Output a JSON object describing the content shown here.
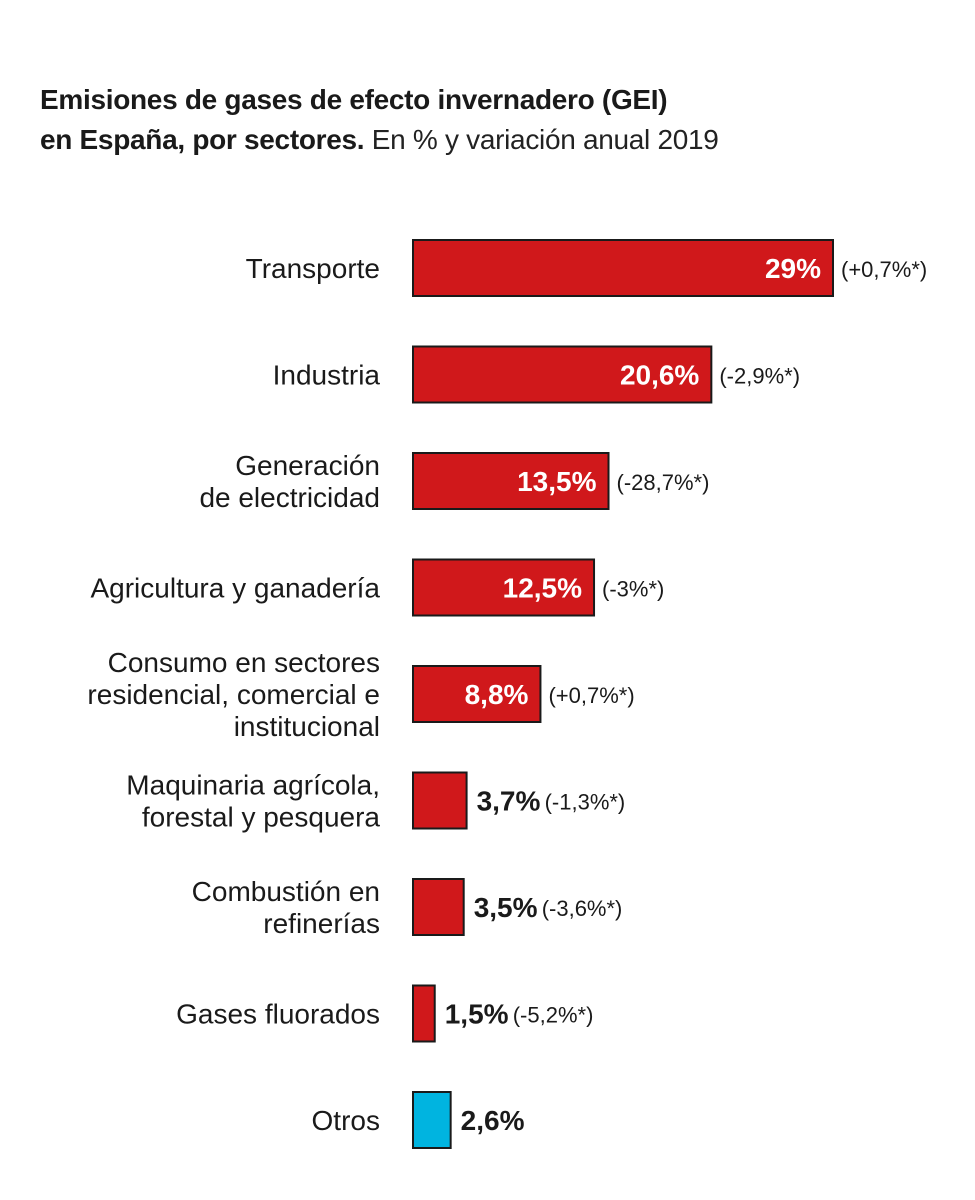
{
  "colors": {
    "bar": "#d0181b",
    "other": "#00b4e0",
    "stroke": "#1a1a1a"
  },
  "chart_data": {
    "type": "bar",
    "orientation": "horizontal",
    "title_line1": "Emisiones de gases de efecto invernadero (GEI)",
    "title_line2_bold": "en España, por sectores.",
    "title_line2_light": "En % y variación anual 2019",
    "categories": [
      [
        "Transporte"
      ],
      [
        "Industria"
      ],
      [
        "Generación",
        "de electricidad"
      ],
      [
        "Agricultura y ganadería"
      ],
      [
        "Consumo en sectores",
        "residencial, comercial e",
        "institucional"
      ],
      [
        "Maquinaria agrícola,",
        "forestal y pesquera"
      ],
      [
        "Combustión en",
        "refinerías"
      ],
      [
        "Gases fluorados"
      ],
      [
        "Otros"
      ]
    ],
    "values": [
      29,
      20.6,
      13.5,
      12.5,
      8.8,
      3.7,
      3.5,
      1.5,
      2.6
    ],
    "value_labels": [
      "29%",
      "20,6%",
      "13,5%",
      "12,5%",
      "8,8%",
      "3,7%",
      "3,5%",
      "1,5%",
      "2,6%"
    ],
    "changes": [
      "(+0,7%*)",
      "(-2,9%*)",
      "(-28,7%*)",
      "(-3%*)",
      "(+0,7%*)",
      "(-1,3%*)",
      "(-3,6%*)",
      "(-5,2%*)",
      ""
    ],
    "highlight": [
      false,
      false,
      false,
      false,
      false,
      false,
      false,
      false,
      true
    ],
    "xlim": [
      0,
      29
    ],
    "grid": false
  }
}
